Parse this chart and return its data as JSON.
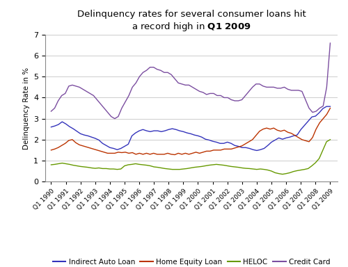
{
  "title_line1": "Delinquency rates for several consumer loans hit",
  "title_bold_suffix": "a record high in Q1 2009",
  "title_bold_word": "Q1 2009",
  "ylabel": "Delinquency Rate in %",
  "ylim": [
    0,
    7
  ],
  "yticks": [
    0,
    1,
    2,
    3,
    4,
    5,
    6,
    7
  ],
  "xlabel_quarters": [
    "Q1 1990",
    "Q1 1991",
    "Q1 1992",
    "Q1 1993",
    "Q1 1994",
    "Q1 1995",
    "Q1 1996",
    "Q1 1997",
    "Q1 1998",
    "Q1 1999",
    "Q1 2000",
    "Q1 2001",
    "Q1 2002",
    "Q1 2003",
    "Q1 2004",
    "Q1 2005",
    "Q1 2006",
    "Q1 2007",
    "Q1 2008",
    "Q1 2009"
  ],
  "series": {
    "Indirect Auto Loan": {
      "color": "#3333bb",
      "data": [
        2.6,
        2.65,
        2.72,
        2.85,
        2.75,
        2.62,
        2.52,
        2.4,
        2.28,
        2.22,
        2.18,
        2.12,
        2.06,
        1.98,
        1.82,
        1.72,
        1.62,
        1.58,
        1.52,
        1.58,
        1.68,
        1.78,
        2.18,
        2.32,
        2.42,
        2.48,
        2.42,
        2.38,
        2.42,
        2.42,
        2.38,
        2.42,
        2.48,
        2.52,
        2.48,
        2.42,
        2.38,
        2.32,
        2.28,
        2.22,
        2.18,
        2.12,
        2.02,
        1.98,
        1.92,
        1.88,
        1.82,
        1.82,
        1.88,
        1.82,
        1.72,
        1.68,
        1.62,
        1.62,
        1.58,
        1.52,
        1.48,
        1.52,
        1.58,
        1.72,
        1.88,
        1.98,
        2.08,
        2.02,
        2.08,
        2.12,
        2.18,
        2.22,
        2.48,
        2.68,
        2.88,
        3.08,
        3.12,
        3.28,
        3.48,
        3.58,
        3.58
      ]
    },
    "Home Equity Loan": {
      "color": "#bb3300",
      "data": [
        1.5,
        1.55,
        1.62,
        1.72,
        1.82,
        1.96,
        2.0,
        1.85,
        1.75,
        1.7,
        1.65,
        1.6,
        1.55,
        1.5,
        1.45,
        1.4,
        1.35,
        1.35,
        1.35,
        1.4,
        1.38,
        1.4,
        1.35,
        1.38,
        1.3,
        1.35,
        1.3,
        1.35,
        1.3,
        1.35,
        1.3,
        1.3,
        1.3,
        1.35,
        1.3,
        1.28,
        1.35,
        1.3,
        1.35,
        1.3,
        1.35,
        1.4,
        1.35,
        1.4,
        1.45,
        1.45,
        1.5,
        1.5,
        1.5,
        1.55,
        1.55,
        1.55,
        1.6,
        1.65,
        1.7,
        1.8,
        1.9,
        2.0,
        2.2,
        2.4,
        2.5,
        2.55,
        2.5,
        2.55,
        2.45,
        2.4,
        2.45,
        2.35,
        2.3,
        2.2,
        2.1,
        2.0,
        1.95,
        1.9,
        2.1,
        2.5,
        2.8,
        3.0,
        3.2,
        3.5
      ]
    },
    "HELOC": {
      "color": "#669900",
      "data": [
        0.8,
        0.82,
        0.85,
        0.88,
        0.85,
        0.82,
        0.78,
        0.75,
        0.72,
        0.7,
        0.68,
        0.65,
        0.63,
        0.65,
        0.62,
        0.62,
        0.6,
        0.6,
        0.58,
        0.6,
        0.75,
        0.8,
        0.82,
        0.85,
        0.82,
        0.8,
        0.78,
        0.75,
        0.7,
        0.68,
        0.65,
        0.62,
        0.6,
        0.58,
        0.58,
        0.58,
        0.6,
        0.62,
        0.65,
        0.68,
        0.7,
        0.72,
        0.75,
        0.78,
        0.8,
        0.82,
        0.8,
        0.78,
        0.75,
        0.72,
        0.7,
        0.68,
        0.65,
        0.63,
        0.62,
        0.6,
        0.58,
        0.6,
        0.58,
        0.55,
        0.5,
        0.42,
        0.38,
        0.35,
        0.38,
        0.42,
        0.48,
        0.52,
        0.55,
        0.58,
        0.62,
        0.75,
        0.9,
        1.1,
        1.5,
        1.9,
        2.0
      ]
    },
    "Credit Card": {
      "color": "#7b4ea0",
      "data": [
        3.35,
        3.5,
        3.85,
        4.1,
        4.2,
        4.55,
        4.6,
        4.55,
        4.5,
        4.4,
        4.3,
        4.2,
        4.1,
        3.9,
        3.7,
        3.5,
        3.3,
        3.1,
        3.0,
        3.1,
        3.5,
        3.8,
        4.1,
        4.5,
        4.7,
        5.0,
        5.2,
        5.3,
        5.45,
        5.45,
        5.35,
        5.3,
        5.2,
        5.2,
        5.1,
        4.9,
        4.7,
        4.65,
        4.6,
        4.6,
        4.5,
        4.4,
        4.3,
        4.25,
        4.15,
        4.2,
        4.2,
        4.1,
        4.1,
        4.0,
        4.0,
        3.9,
        3.85,
        3.85,
        3.9,
        4.1,
        4.3,
        4.5,
        4.65,
        4.65,
        4.55,
        4.5,
        4.5,
        4.5,
        4.45,
        4.45,
        4.5,
        4.4,
        4.35,
        4.35,
        4.35,
        4.3,
        3.9,
        3.5,
        3.3,
        3.35,
        3.5,
        3.6,
        4.5,
        6.6
      ]
    }
  },
  "background_color": "#ffffff",
  "grid_color": "#cccccc",
  "legend_labels": [
    "Indirect Auto Loan",
    "Home Equity Loan",
    "HELOC",
    "Credit Card"
  ],
  "legend_colors": [
    "#3333bb",
    "#bb3300",
    "#669900",
    "#7b4ea0"
  ]
}
